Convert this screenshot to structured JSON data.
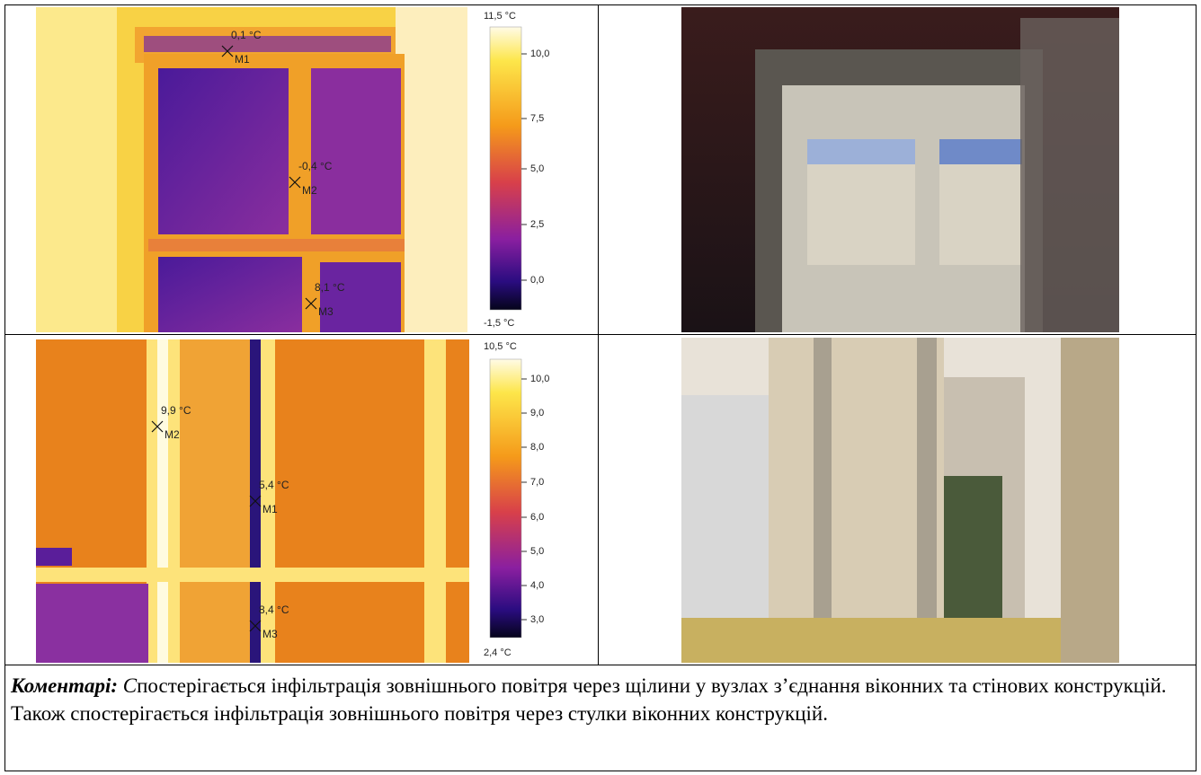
{
  "table": {
    "rows": [
      {
        "thermal": {
          "scale_max": "11,5 °C",
          "scale_min": "-1,5 °C",
          "scale_ticks": [
            "10,0",
            "7,5",
            "5,0",
            "2,5",
            "0,0"
          ],
          "markers": [
            {
              "temp": "0,1 °C",
              "label": "M1"
            },
            {
              "temp": "-0,4 °C",
              "label": "M2"
            },
            {
              "temp": "8,1 °C",
              "label": "M3"
            }
          ]
        }
      },
      {
        "thermal": {
          "scale_max": "10,5 °C",
          "scale_min": "2,4 °C",
          "scale_ticks": [
            "10,0",
            "9,0",
            "8,0",
            "7,0",
            "6,0",
            "5,0",
            "4,0",
            "3,0"
          ],
          "markers": [
            {
              "temp": "9,9 °C",
              "label": "M2"
            },
            {
              "temp": "5,4 °C",
              "label": "M1"
            },
            {
              "temp": "8,4 °C",
              "label": "M3"
            }
          ]
        }
      }
    ],
    "comment": {
      "label": "Коментарі:",
      "initial": "С",
      "text": "постерігається інфільтрація зовнішнього повітря через щілини у вузлах з’єднання віконних та стінових конструкцій. Також спостерігається інфільтрація зовнішнього повітря через стулки віконних конструкцій."
    }
  }
}
